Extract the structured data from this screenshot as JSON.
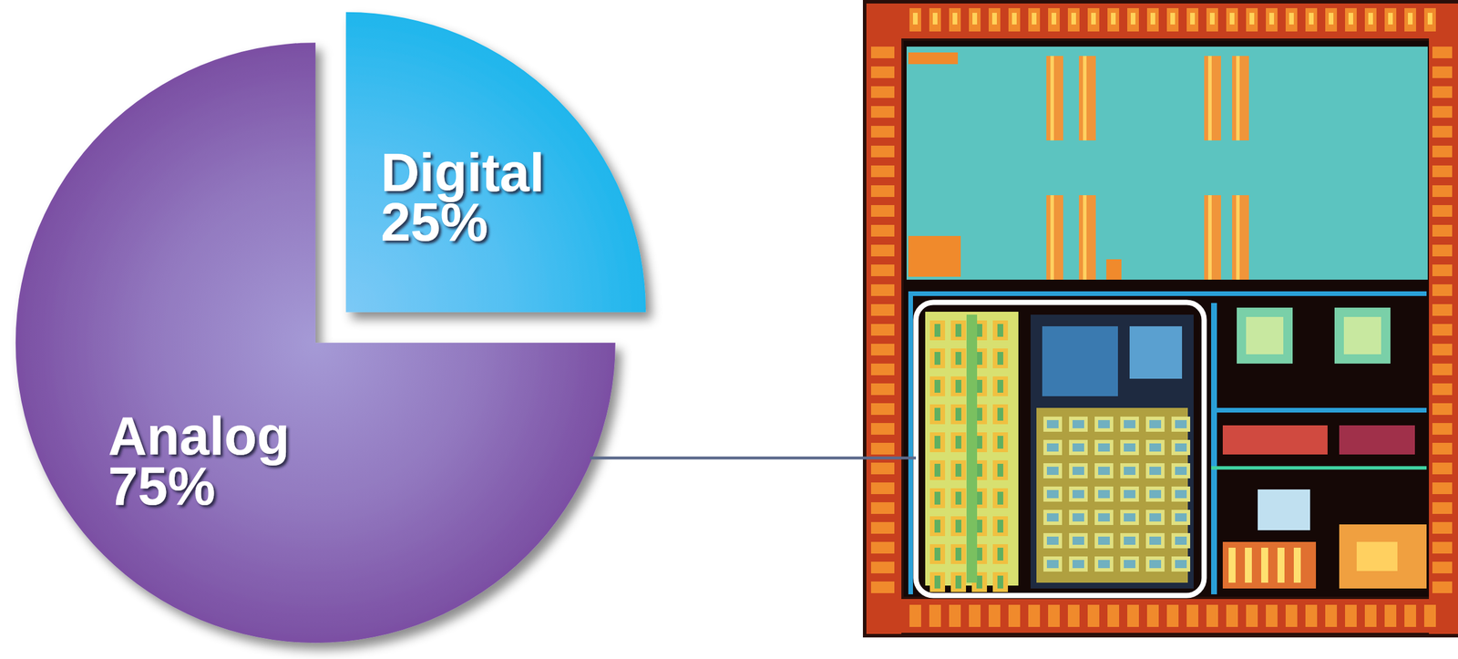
{
  "chart_data": {
    "type": "pie",
    "categories": [
      "Analog",
      "Digital"
    ],
    "values": [
      75,
      25
    ],
    "value_labels": [
      "75%",
      "25%"
    ],
    "colors": [
      "#7b4fa3",
      "#1fb6ec"
    ],
    "data_labels": true
  }
}
